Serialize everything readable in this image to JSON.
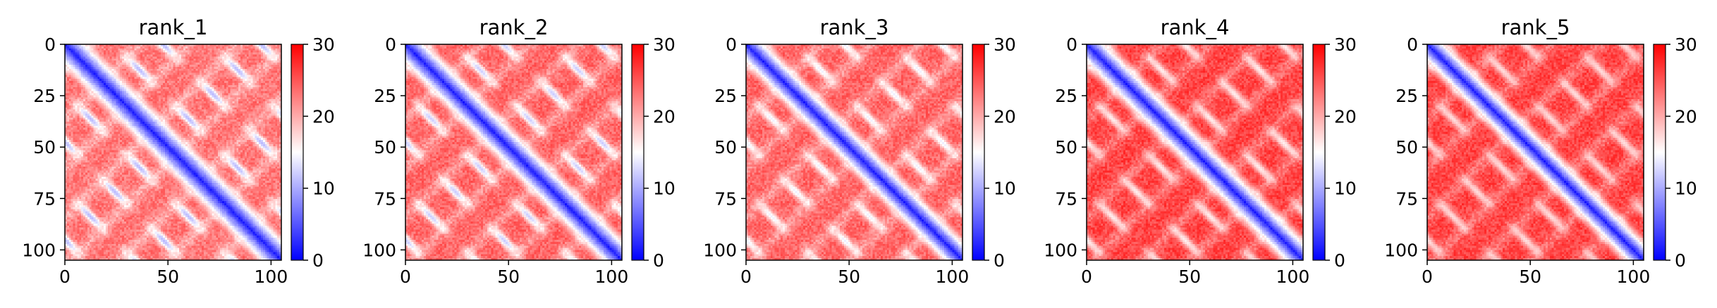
{
  "chart_data": [
    {
      "type": "heatmap",
      "title": "rank_1",
      "size": 106,
      "xlim": [
        0,
        105
      ],
      "ylim": [
        105,
        0
      ],
      "xticks": [
        0,
        50,
        100
      ],
      "yticks": [
        0,
        25,
        50,
        75,
        100
      ],
      "colorbar": {
        "min": 0,
        "max": 30,
        "ticks": [
          0,
          10,
          20,
          30
        ],
        "colormap": "bwr"
      },
      "pattern": {
        "period": 24,
        "band_width": 3.2,
        "off_diagonal_contact": 11,
        "background": 23
      }
    },
    {
      "type": "heatmap",
      "title": "rank_2",
      "size": 106,
      "xlim": [
        0,
        105
      ],
      "ylim": [
        105,
        0
      ],
      "xticks": [
        0,
        50,
        100
      ],
      "yticks": [
        0,
        25,
        50,
        75,
        100
      ],
      "colorbar": {
        "min": 0,
        "max": 30,
        "ticks": [
          0,
          10,
          20,
          30
        ],
        "colormap": "bwr"
      },
      "pattern": {
        "period": 24,
        "band_width": 3.0,
        "off_diagonal_contact": 12,
        "background": 24
      }
    },
    {
      "type": "heatmap",
      "title": "rank_3",
      "size": 106,
      "xlim": [
        0,
        105
      ],
      "ylim": [
        105,
        0
      ],
      "xticks": [
        0,
        50,
        100
      ],
      "yticks": [
        0,
        25,
        50,
        75,
        100
      ],
      "colorbar": {
        "min": 0,
        "max": 30,
        "ticks": [
          0,
          10,
          20,
          30
        ],
        "colormap": "bwr"
      },
      "pattern": {
        "period": 24,
        "band_width": 2.8,
        "off_diagonal_contact": 14,
        "background": 24
      }
    },
    {
      "type": "heatmap",
      "title": "rank_4",
      "size": 106,
      "xlim": [
        0,
        105
      ],
      "ylim": [
        105,
        0
      ],
      "xticks": [
        0,
        50,
        100
      ],
      "yticks": [
        0,
        25,
        50,
        75,
        100
      ],
      "colorbar": {
        "min": 0,
        "max": 30,
        "ticks": [
          0,
          10,
          20,
          30
        ],
        "colormap": "bwr"
      },
      "pattern": {
        "period": 24,
        "band_width": 2.8,
        "off_diagonal_contact": 16,
        "background": 26
      }
    },
    {
      "type": "heatmap",
      "title": "rank_5",
      "size": 106,
      "xlim": [
        0,
        105
      ],
      "ylim": [
        105,
        0
      ],
      "xticks": [
        0,
        50,
        100
      ],
      "yticks": [
        0,
        25,
        50,
        75,
        100
      ],
      "colorbar": {
        "min": 0,
        "max": 30,
        "ticks": [
          0,
          10,
          20,
          30
        ],
        "colormap": "bwr"
      },
      "pattern": {
        "period": 24,
        "band_width": 2.6,
        "off_diagonal_contact": 17,
        "background": 26
      }
    }
  ]
}
